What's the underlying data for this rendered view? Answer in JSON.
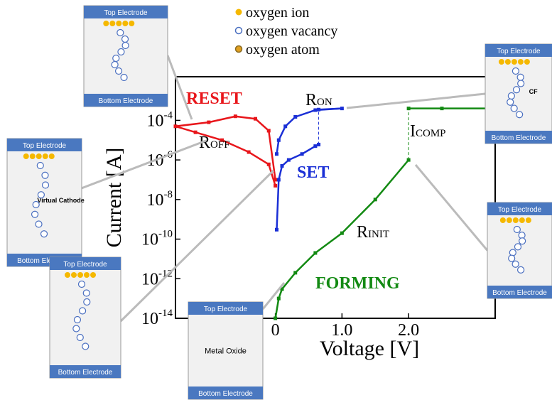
{
  "chart_data": {
    "type": "line",
    "log_scale_y": true,
    "xlabel": "Voltage [V]",
    "ylabel": "Current [A]",
    "xlim": [
      -1.5,
      3.3
    ],
    "ylim": [
      1e-14,
      0.016
    ],
    "xticks": [
      0,
      {
        "value": 1,
        "label": "1.0"
      },
      {
        "value": 2,
        "label": "2.0"
      }
    ],
    "yticks": [
      {
        "value": 1e-14,
        "label": "10",
        "exponent": "-14"
      },
      {
        "value": 1e-12,
        "label": "10",
        "exponent": "-12"
      },
      {
        "value": 1e-10,
        "label": "10",
        "exponent": "-10"
      },
      {
        "value": 1e-08,
        "label": "10",
        "exponent": "-8"
      },
      {
        "value": 1e-06,
        "label": "10",
        "exponent": "-6"
      },
      {
        "value": 0.0001,
        "label": "10",
        "exponent": "-4"
      }
    ],
    "series": [
      {
        "name": "RESET",
        "color": "#e8161b",
        "x": [
          0,
          -0.1,
          -0.3,
          -0.6,
          -1.0,
          -1.5,
          -1.2,
          -0.8,
          -0.4,
          -0.1,
          0
        ],
        "values": [
          1e-07,
          3e-05,
          0.00012,
          0.00016,
          8e-05,
          5e-05,
          2.5e-05,
          1e-05,
          2.5e-06,
          6e-07,
          5e-08
        ]
      },
      {
        "name": "SET",
        "color": "#1a2fd6",
        "x": [
          0.02,
          0.05,
          0.1,
          0.2,
          0.4,
          0.6,
          0.65,
          0.65,
          1.0,
          0.6,
          0.3,
          0.15,
          0.05,
          0.02
        ],
        "values": [
          3e-10,
          1e-07,
          5e-07,
          1e-06,
          2e-06,
          5e-06,
          6e-06,
          0.00035,
          0.0004,
          0.00033,
          0.00015,
          5e-05,
          1e-05,
          2e-06
        ]
      },
      {
        "name": "FORMING",
        "color": "#138a13",
        "x": [
          0,
          0.05,
          0.1,
          0.3,
          0.6,
          1.0,
          1.5,
          2.0,
          2.0,
          2.5,
          3.3
        ],
        "values": [
          1e-14,
          1e-13,
          3e-13,
          2e-12,
          2e-11,
          2e-10,
          1e-08,
          1e-06,
          0.0004,
          0.0004,
          0.0004
        ]
      }
    ],
    "annotations": [
      {
        "text": "R",
        "sub": "ON"
      },
      {
        "text": "R",
        "sub": "OFF"
      },
      {
        "text": "I",
        "sub": "COMP"
      },
      {
        "text": "R",
        "sub": "INIT"
      }
    ],
    "legend": [
      {
        "name": "oxygen ion",
        "color": "#f5b800"
      },
      {
        "name": "oxygen vacancy",
        "color": "#4a6fc0"
      },
      {
        "name": "oxygen atom",
        "color": "#e0a020"
      }
    ],
    "insets": [
      {
        "top": "Top Electrode",
        "bottom": "Bottom Electrode"
      },
      {
        "top": "Top Electrode",
        "bottom": "Bottom Electrode",
        "label": "Virtual Cathode"
      },
      {
        "top": "Top Electrode",
        "bottom": "Bottom Electrode"
      },
      {
        "top": "Top Electrode",
        "bottom": "Bottom Electrode",
        "label": "Metal Oxide"
      },
      {
        "top": "Top Electrode",
        "bottom": "Bottom Electrode",
        "label": "CF"
      },
      {
        "top": "Top Electrode",
        "bottom": "Bottom Electrode"
      }
    ]
  }
}
